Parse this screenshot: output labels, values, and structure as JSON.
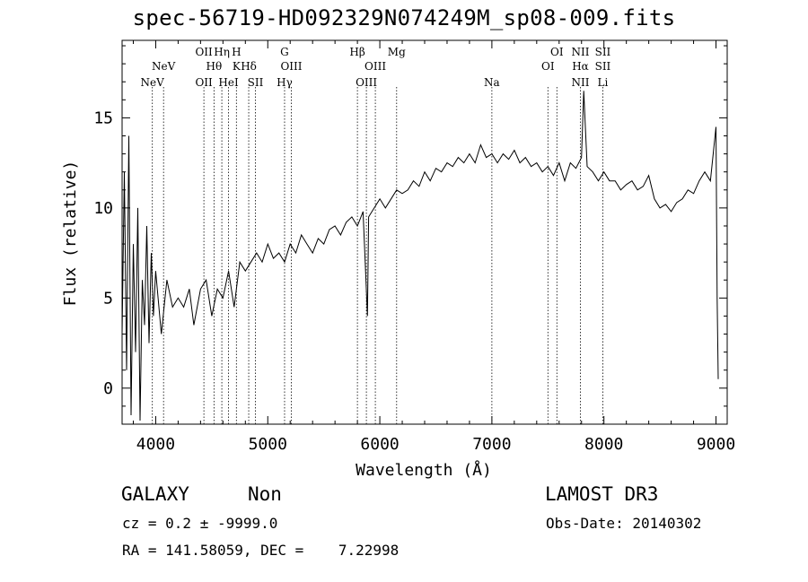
{
  "chart_data": {
    "type": "line",
    "title": "spec-56719-HD092329N074249M_sp08-009.fits",
    "xlabel": "Wavelength (Å)",
    "ylabel": "Flux (relative)",
    "xlim": [
      3700,
      9100
    ],
    "ylim": [
      -2.0,
      19.3
    ],
    "xticks": [
      4000,
      5000,
      6000,
      7000,
      8000,
      9000
    ],
    "yticks": [
      0,
      5,
      10,
      15
    ],
    "series": [
      {
        "name": "spectrum",
        "x": [
          3700,
          3720,
          3740,
          3760,
          3780,
          3800,
          3820,
          3840,
          3860,
          3880,
          3900,
          3920,
          3940,
          3960,
          3980,
          4000,
          4050,
          4100,
          4150,
          4200,
          4250,
          4300,
          4340,
          4400,
          4450,
          4500,
          4550,
          4600,
          4650,
          4700,
          4750,
          4800,
          4850,
          4900,
          4950,
          5000,
          5050,
          5100,
          5150,
          5200,
          5250,
          5300,
          5350,
          5400,
          5450,
          5500,
          5550,
          5600,
          5650,
          5700,
          5750,
          5800,
          5850,
          5890,
          5900,
          5950,
          6000,
          6050,
          6100,
          6150,
          6200,
          6250,
          6300,
          6350,
          6400,
          6450,
          6500,
          6550,
          6600,
          6650,
          6700,
          6750,
          6800,
          6850,
          6900,
          6950,
          7000,
          7050,
          7100,
          7150,
          7200,
          7250,
          7300,
          7350,
          7400,
          7450,
          7500,
          7550,
          7600,
          7650,
          7700,
          7750,
          7800,
          7820,
          7850,
          7900,
          7950,
          8000,
          8050,
          8100,
          8150,
          8200,
          8250,
          8300,
          8350,
          8400,
          8450,
          8500,
          8550,
          8600,
          8650,
          8700,
          8750,
          8800,
          8850,
          8900,
          8950,
          9000,
          9010,
          9020
        ],
        "y": [
          3.0,
          12.0,
          1.0,
          14.0,
          -1.5,
          8.0,
          2.0,
          10.0,
          -1.8,
          6.0,
          3.5,
          9.0,
          2.5,
          7.5,
          4.0,
          6.5,
          3.0,
          6.0,
          4.5,
          5.0,
          4.5,
          5.5,
          3.5,
          5.5,
          6.0,
          4.0,
          5.5,
          5.0,
          6.5,
          4.5,
          7.0,
          6.5,
          7.0,
          7.5,
          7.0,
          8.0,
          7.2,
          7.5,
          7.0,
          8.0,
          7.5,
          8.5,
          8.0,
          7.5,
          8.3,
          8.0,
          8.8,
          9.0,
          8.5,
          9.2,
          9.5,
          9.0,
          9.8,
          4.0,
          9.5,
          10.0,
          10.5,
          10.0,
          10.5,
          11.0,
          10.8,
          11.0,
          11.5,
          11.2,
          12.0,
          11.5,
          12.2,
          12.0,
          12.5,
          12.3,
          12.8,
          12.5,
          13.0,
          12.5,
          13.5,
          12.8,
          13.0,
          12.5,
          13.0,
          12.7,
          13.2,
          12.5,
          12.8,
          12.3,
          12.5,
          12.0,
          12.3,
          11.8,
          12.5,
          11.5,
          12.5,
          12.2,
          12.8,
          16.5,
          12.3,
          12.0,
          11.5,
          12.0,
          11.5,
          11.5,
          11.0,
          11.3,
          11.5,
          11.0,
          11.2,
          11.8,
          10.5,
          10.0,
          10.2,
          9.8,
          10.3,
          10.5,
          11.0,
          10.8,
          11.5,
          12.0,
          11.5,
          14.5,
          5.0,
          0.5
        ]
      }
    ],
    "line_markers": [
      {
        "wave": 3970,
        "labels": [
          "NeV"
        ],
        "rows": [
          3
        ]
      },
      {
        "wave": 4070,
        "labels": [
          "NeV"
        ],
        "rows": [
          2
        ]
      },
      {
        "wave": 4430,
        "labels": [
          "OII",
          "OII"
        ],
        "rows": [
          1,
          3
        ]
      },
      {
        "wave": 4520,
        "labels": [
          "Hθ"
        ],
        "rows": [
          2
        ]
      },
      {
        "wave": 4590,
        "labels": [
          "Hη"
        ],
        "rows": [
          1
        ]
      },
      {
        "wave": 4650,
        "labels": [
          "HeI"
        ],
        "rows": [
          3
        ]
      },
      {
        "wave": 4720,
        "labels": [
          "H",
          "K"
        ],
        "rows": [
          1,
          2
        ]
      },
      {
        "wave": 4830,
        "labels": [
          "Hδ"
        ],
        "rows": [
          2
        ]
      },
      {
        "wave": 4890,
        "labels": [
          "SII"
        ],
        "rows": [
          3
        ]
      },
      {
        "wave": 5150,
        "labels": [
          "G",
          "Hγ"
        ],
        "rows": [
          1,
          3
        ]
      },
      {
        "wave": 5210,
        "labels": [
          "OIII"
        ],
        "rows": [
          2
        ]
      },
      {
        "wave": 5800,
        "labels": [
          "Hβ"
        ],
        "rows": [
          1
        ]
      },
      {
        "wave": 5880,
        "labels": [
          "OIII"
        ],
        "rows": [
          3
        ]
      },
      {
        "wave": 5960,
        "labels": [
          "OIII"
        ],
        "rows": [
          2
        ]
      },
      {
        "wave": 6150,
        "labels": [
          "Mg"
        ],
        "rows": [
          1
        ]
      },
      {
        "wave": 7000,
        "labels": [
          "Na"
        ],
        "rows": [
          3
        ]
      },
      {
        "wave": 7500,
        "labels": [
          "OI"
        ],
        "rows": [
          2
        ]
      },
      {
        "wave": 7580,
        "labels": [
          "OI"
        ],
        "rows": [
          1
        ]
      },
      {
        "wave": 7790,
        "labels": [
          "NII",
          "Hα",
          "NII"
        ],
        "rows": [
          1,
          2,
          3
        ]
      },
      {
        "wave": 7990,
        "labels": [
          "SII",
          "SII",
          "Li"
        ],
        "rows": [
          1,
          2,
          3
        ]
      }
    ]
  },
  "footer": {
    "classification": "GALAXY",
    "subclass": "Non",
    "survey": "LAMOST DR3",
    "redshift_text": "cz = 0.2 ± -9999.0",
    "obs_date": "Obs-Date: 20140302",
    "coords_text": "RA = 141.58059, DEC =    7.22998"
  }
}
